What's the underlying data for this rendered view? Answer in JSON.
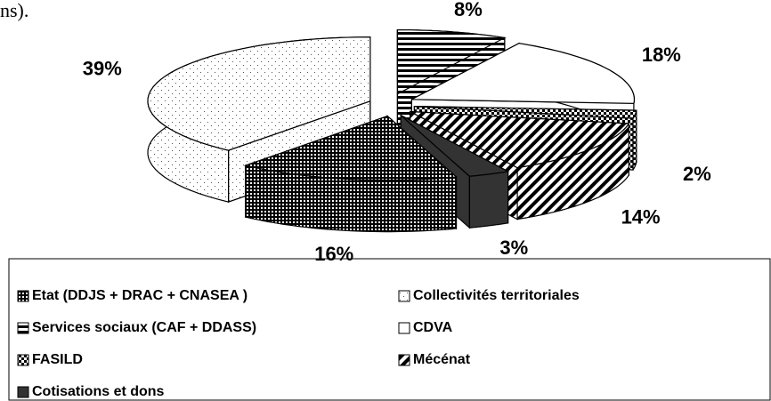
{
  "chart_data": {
    "type": "pie",
    "caption": "ns).",
    "categories": [
      "Etat (DDJS + DRAC + CNASEA )",
      "Collectivités territoriales",
      "Services sociaux (CAF + DDASS)",
      "CDVA",
      "FASILD",
      "Mécénat",
      "Cotisations et dons"
    ],
    "values": [
      16,
      39,
      8,
      18,
      2,
      14,
      3
    ],
    "value_labels": [
      "16%",
      "39%",
      "8%",
      "18%",
      "2%",
      "14%",
      "3%"
    ],
    "patterns": [
      "grid",
      "dots",
      "hlines",
      "white",
      "checker",
      "diagonal",
      "solid"
    ],
    "legend": "bottom"
  }
}
